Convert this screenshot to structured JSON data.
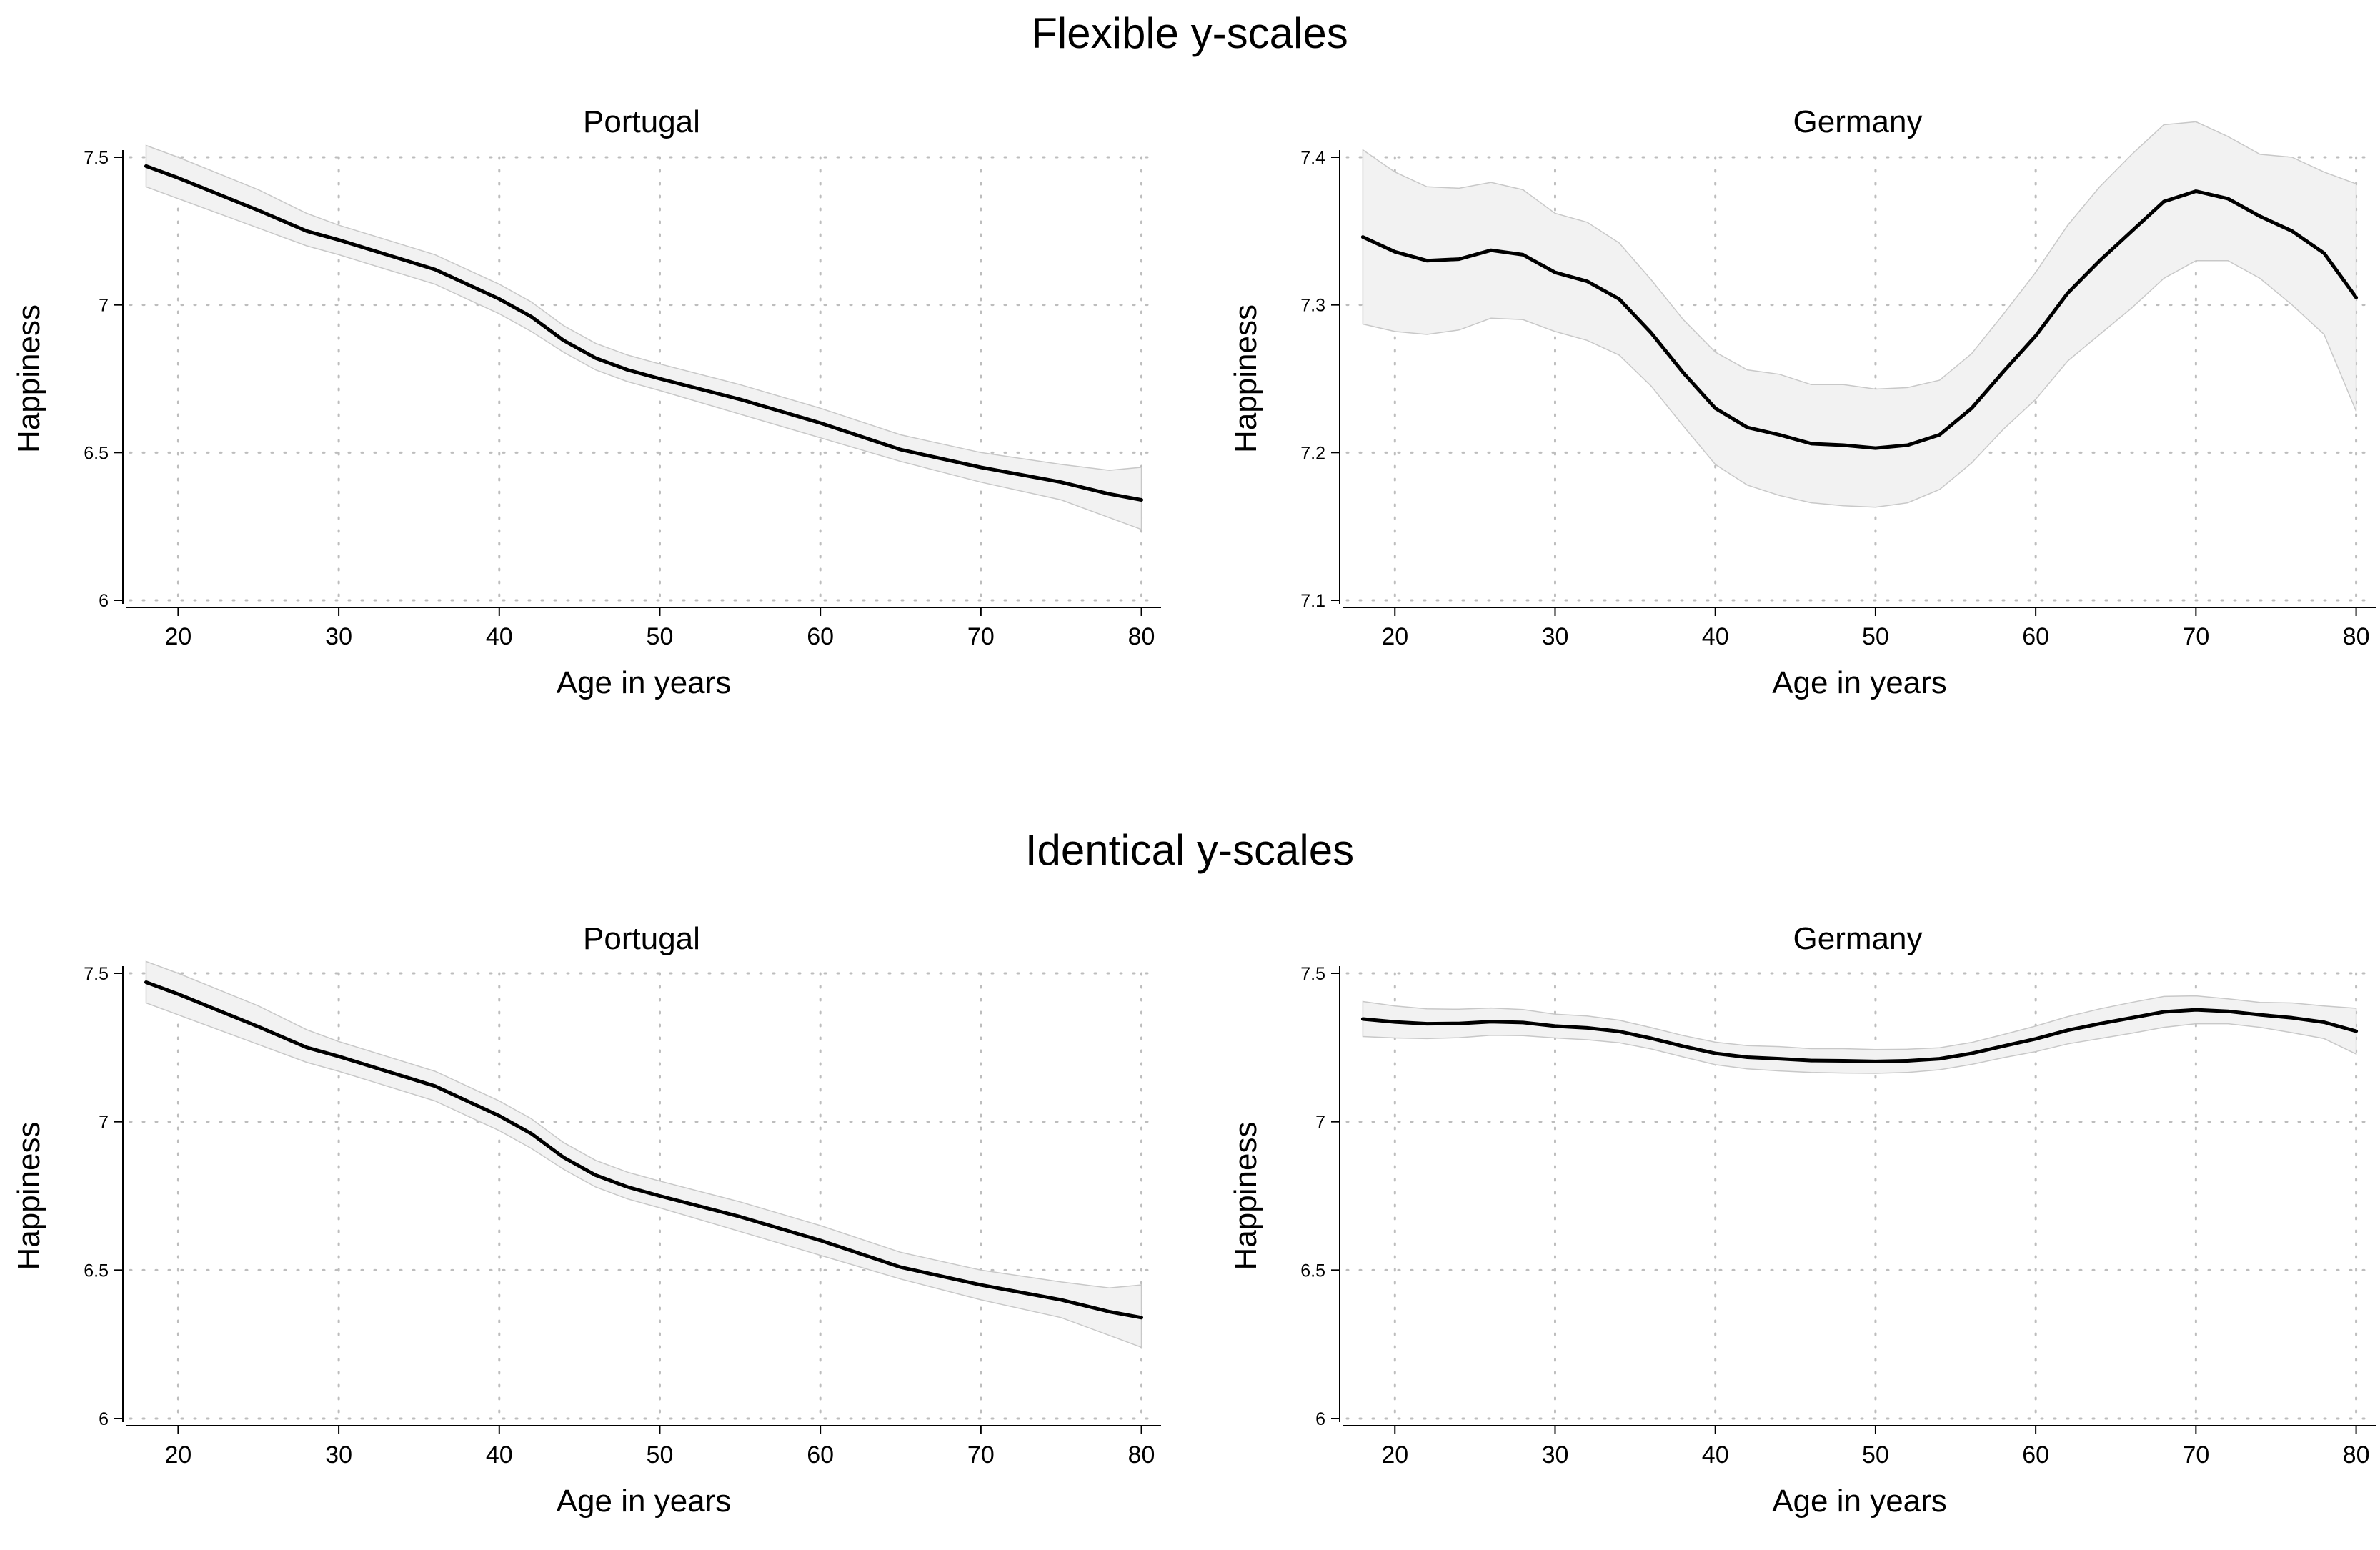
{
  "section_titles": [
    "Flexible y-scales",
    "Identical y-scales"
  ],
  "chart_data": [
    {
      "type": "line",
      "title": "Portugal",
      "xlabel": "Age in years",
      "ylabel": "Happiness",
      "xlim": [
        17,
        81
      ],
      "ylim": [
        6,
        7.5
      ],
      "xticks": [
        20,
        30,
        40,
        50,
        60,
        70,
        80
      ],
      "xtick_labels": [
        "20",
        "30",
        "40",
        "50",
        "60",
        "70",
        "80"
      ],
      "yticks": [
        6,
        6.5,
        7,
        7.5
      ],
      "ytick_labels": [
        "6",
        "6.5",
        "7",
        "7.5"
      ],
      "grid": true,
      "series": [
        {
          "name": "Happiness",
          "x": [
            18,
            20,
            25,
            28,
            30,
            33,
            36,
            38,
            40,
            42,
            44,
            46,
            48,
            50,
            55,
            60,
            65,
            70,
            75,
            78,
            80
          ],
          "y": [
            7.47,
            7.43,
            7.32,
            7.25,
            7.22,
            7.17,
            7.12,
            7.07,
            7.02,
            6.96,
            6.88,
            6.82,
            6.78,
            6.75,
            6.68,
            6.6,
            6.51,
            6.45,
            6.4,
            6.36,
            6.34
          ],
          "lower": [
            7.4,
            7.36,
            7.26,
            7.2,
            7.17,
            7.12,
            7.07,
            7.02,
            6.97,
            6.91,
            6.84,
            6.78,
            6.74,
            6.71,
            6.63,
            6.55,
            6.47,
            6.4,
            6.34,
            6.28,
            6.24
          ],
          "upper": [
            7.54,
            7.5,
            7.39,
            7.31,
            7.27,
            7.22,
            7.17,
            7.12,
            7.07,
            7.01,
            6.93,
            6.87,
            6.83,
            6.8,
            6.73,
            6.65,
            6.56,
            6.5,
            6.46,
            6.44,
            6.45
          ]
        }
      ]
    },
    {
      "type": "line",
      "title": "Germany",
      "xlabel": "Age in years",
      "ylabel": "Happiness",
      "xlim": [
        17,
        81
      ],
      "ylim": [
        7.1,
        7.4
      ],
      "xticks": [
        20,
        30,
        40,
        50,
        60,
        70,
        80
      ],
      "xtick_labels": [
        "20",
        "30",
        "40",
        "50",
        "60",
        "70",
        "80"
      ],
      "yticks": [
        7.1,
        7.2,
        7.3,
        7.4
      ],
      "ytick_labels": [
        "7.1",
        "7.2",
        "7.3",
        "7.4"
      ],
      "grid": true,
      "series": [
        {
          "name": "Happiness",
          "x": [
            18,
            20,
            22,
            24,
            26,
            28,
            30,
            32,
            34,
            36,
            38,
            40,
            42,
            44,
            46,
            48,
            50,
            52,
            54,
            56,
            58,
            60,
            62,
            64,
            66,
            68,
            70,
            72,
            74,
            76,
            78,
            80
          ],
          "y": [
            7.346,
            7.336,
            7.33,
            7.331,
            7.337,
            7.334,
            7.322,
            7.316,
            7.304,
            7.281,
            7.254,
            7.23,
            7.217,
            7.212,
            7.206,
            7.205,
            7.203,
            7.205,
            7.212,
            7.23,
            7.255,
            7.279,
            7.308,
            7.33,
            7.35,
            7.37,
            7.377,
            7.372,
            7.36,
            7.35,
            7.335,
            7.305
          ],
          "lower": [
            7.287,
            7.282,
            7.28,
            7.283,
            7.291,
            7.29,
            7.282,
            7.276,
            7.266,
            7.245,
            7.218,
            7.192,
            7.178,
            7.171,
            7.166,
            7.164,
            7.163,
            7.166,
            7.175,
            7.193,
            7.216,
            7.236,
            7.262,
            7.28,
            7.298,
            7.318,
            7.33,
            7.33,
            7.318,
            7.3,
            7.28,
            7.228
          ],
          "upper": [
            7.405,
            7.39,
            7.38,
            7.379,
            7.383,
            7.378,
            7.362,
            7.356,
            7.342,
            7.317,
            7.29,
            7.268,
            7.256,
            7.253,
            7.246,
            7.246,
            7.243,
            7.244,
            7.249,
            7.267,
            7.294,
            7.322,
            7.354,
            7.38,
            7.402,
            7.422,
            7.424,
            7.414,
            7.402,
            7.4,
            7.39,
            7.382
          ]
        }
      ]
    },
    {
      "type": "line",
      "title": "Portugal",
      "xlabel": "Age in years",
      "ylabel": "Happiness",
      "xlim": [
        17,
        81
      ],
      "ylim": [
        6,
        7.5
      ],
      "xticks": [
        20,
        30,
        40,
        50,
        60,
        70,
        80
      ],
      "xtick_labels": [
        "20",
        "30",
        "40",
        "50",
        "60",
        "70",
        "80"
      ],
      "yticks": [
        6,
        6.5,
        7,
        7.5
      ],
      "ytick_labels": [
        "6",
        "6.5",
        "7",
        "7.5"
      ],
      "grid": true,
      "series": [
        {
          "name": "Happiness",
          "x": [
            18,
            20,
            25,
            28,
            30,
            33,
            36,
            38,
            40,
            42,
            44,
            46,
            48,
            50,
            55,
            60,
            65,
            70,
            75,
            78,
            80
          ],
          "y": [
            7.47,
            7.43,
            7.32,
            7.25,
            7.22,
            7.17,
            7.12,
            7.07,
            7.02,
            6.96,
            6.88,
            6.82,
            6.78,
            6.75,
            6.68,
            6.6,
            6.51,
            6.45,
            6.4,
            6.36,
            6.34
          ],
          "lower": [
            7.4,
            7.36,
            7.26,
            7.2,
            7.17,
            7.12,
            7.07,
            7.02,
            6.97,
            6.91,
            6.84,
            6.78,
            6.74,
            6.71,
            6.63,
            6.55,
            6.47,
            6.4,
            6.34,
            6.28,
            6.24
          ],
          "upper": [
            7.54,
            7.5,
            7.39,
            7.31,
            7.27,
            7.22,
            7.17,
            7.12,
            7.07,
            7.01,
            6.93,
            6.87,
            6.83,
            6.8,
            6.73,
            6.65,
            6.56,
            6.5,
            6.46,
            6.44,
            6.45
          ]
        }
      ]
    },
    {
      "type": "line",
      "title": "Germany",
      "xlabel": "Age in years",
      "ylabel": "Happiness",
      "xlim": [
        17,
        81
      ],
      "ylim": [
        6,
        7.5
      ],
      "xticks": [
        20,
        30,
        40,
        50,
        60,
        70,
        80
      ],
      "xtick_labels": [
        "20",
        "30",
        "40",
        "50",
        "60",
        "70",
        "80"
      ],
      "yticks": [
        6,
        6.5,
        7,
        7.5
      ],
      "ytick_labels": [
        "6",
        "6.5",
        "7",
        "7.5"
      ],
      "grid": true,
      "series": [
        {
          "name": "Happiness",
          "x": [
            18,
            20,
            22,
            24,
            26,
            28,
            30,
            32,
            34,
            36,
            38,
            40,
            42,
            44,
            46,
            48,
            50,
            52,
            54,
            56,
            58,
            60,
            62,
            64,
            66,
            68,
            70,
            72,
            74,
            76,
            78,
            80
          ],
          "y": [
            7.346,
            7.336,
            7.33,
            7.331,
            7.337,
            7.334,
            7.322,
            7.316,
            7.304,
            7.281,
            7.254,
            7.23,
            7.217,
            7.212,
            7.206,
            7.205,
            7.203,
            7.205,
            7.212,
            7.23,
            7.255,
            7.279,
            7.308,
            7.33,
            7.35,
            7.37,
            7.377,
            7.372,
            7.36,
            7.35,
            7.335,
            7.305
          ],
          "lower": [
            7.287,
            7.282,
            7.28,
            7.283,
            7.291,
            7.29,
            7.282,
            7.276,
            7.266,
            7.245,
            7.218,
            7.192,
            7.178,
            7.171,
            7.166,
            7.164,
            7.163,
            7.166,
            7.175,
            7.193,
            7.216,
            7.236,
            7.262,
            7.28,
            7.298,
            7.318,
            7.33,
            7.33,
            7.318,
            7.3,
            7.28,
            7.228
          ],
          "upper": [
            7.405,
            7.39,
            7.38,
            7.379,
            7.383,
            7.378,
            7.362,
            7.356,
            7.342,
            7.317,
            7.29,
            7.268,
            7.256,
            7.253,
            7.246,
            7.246,
            7.243,
            7.244,
            7.249,
            7.267,
            7.294,
            7.322,
            7.354,
            7.38,
            7.402,
            7.422,
            7.424,
            7.414,
            7.402,
            7.4,
            7.39,
            7.382
          ]
        }
      ]
    }
  ]
}
